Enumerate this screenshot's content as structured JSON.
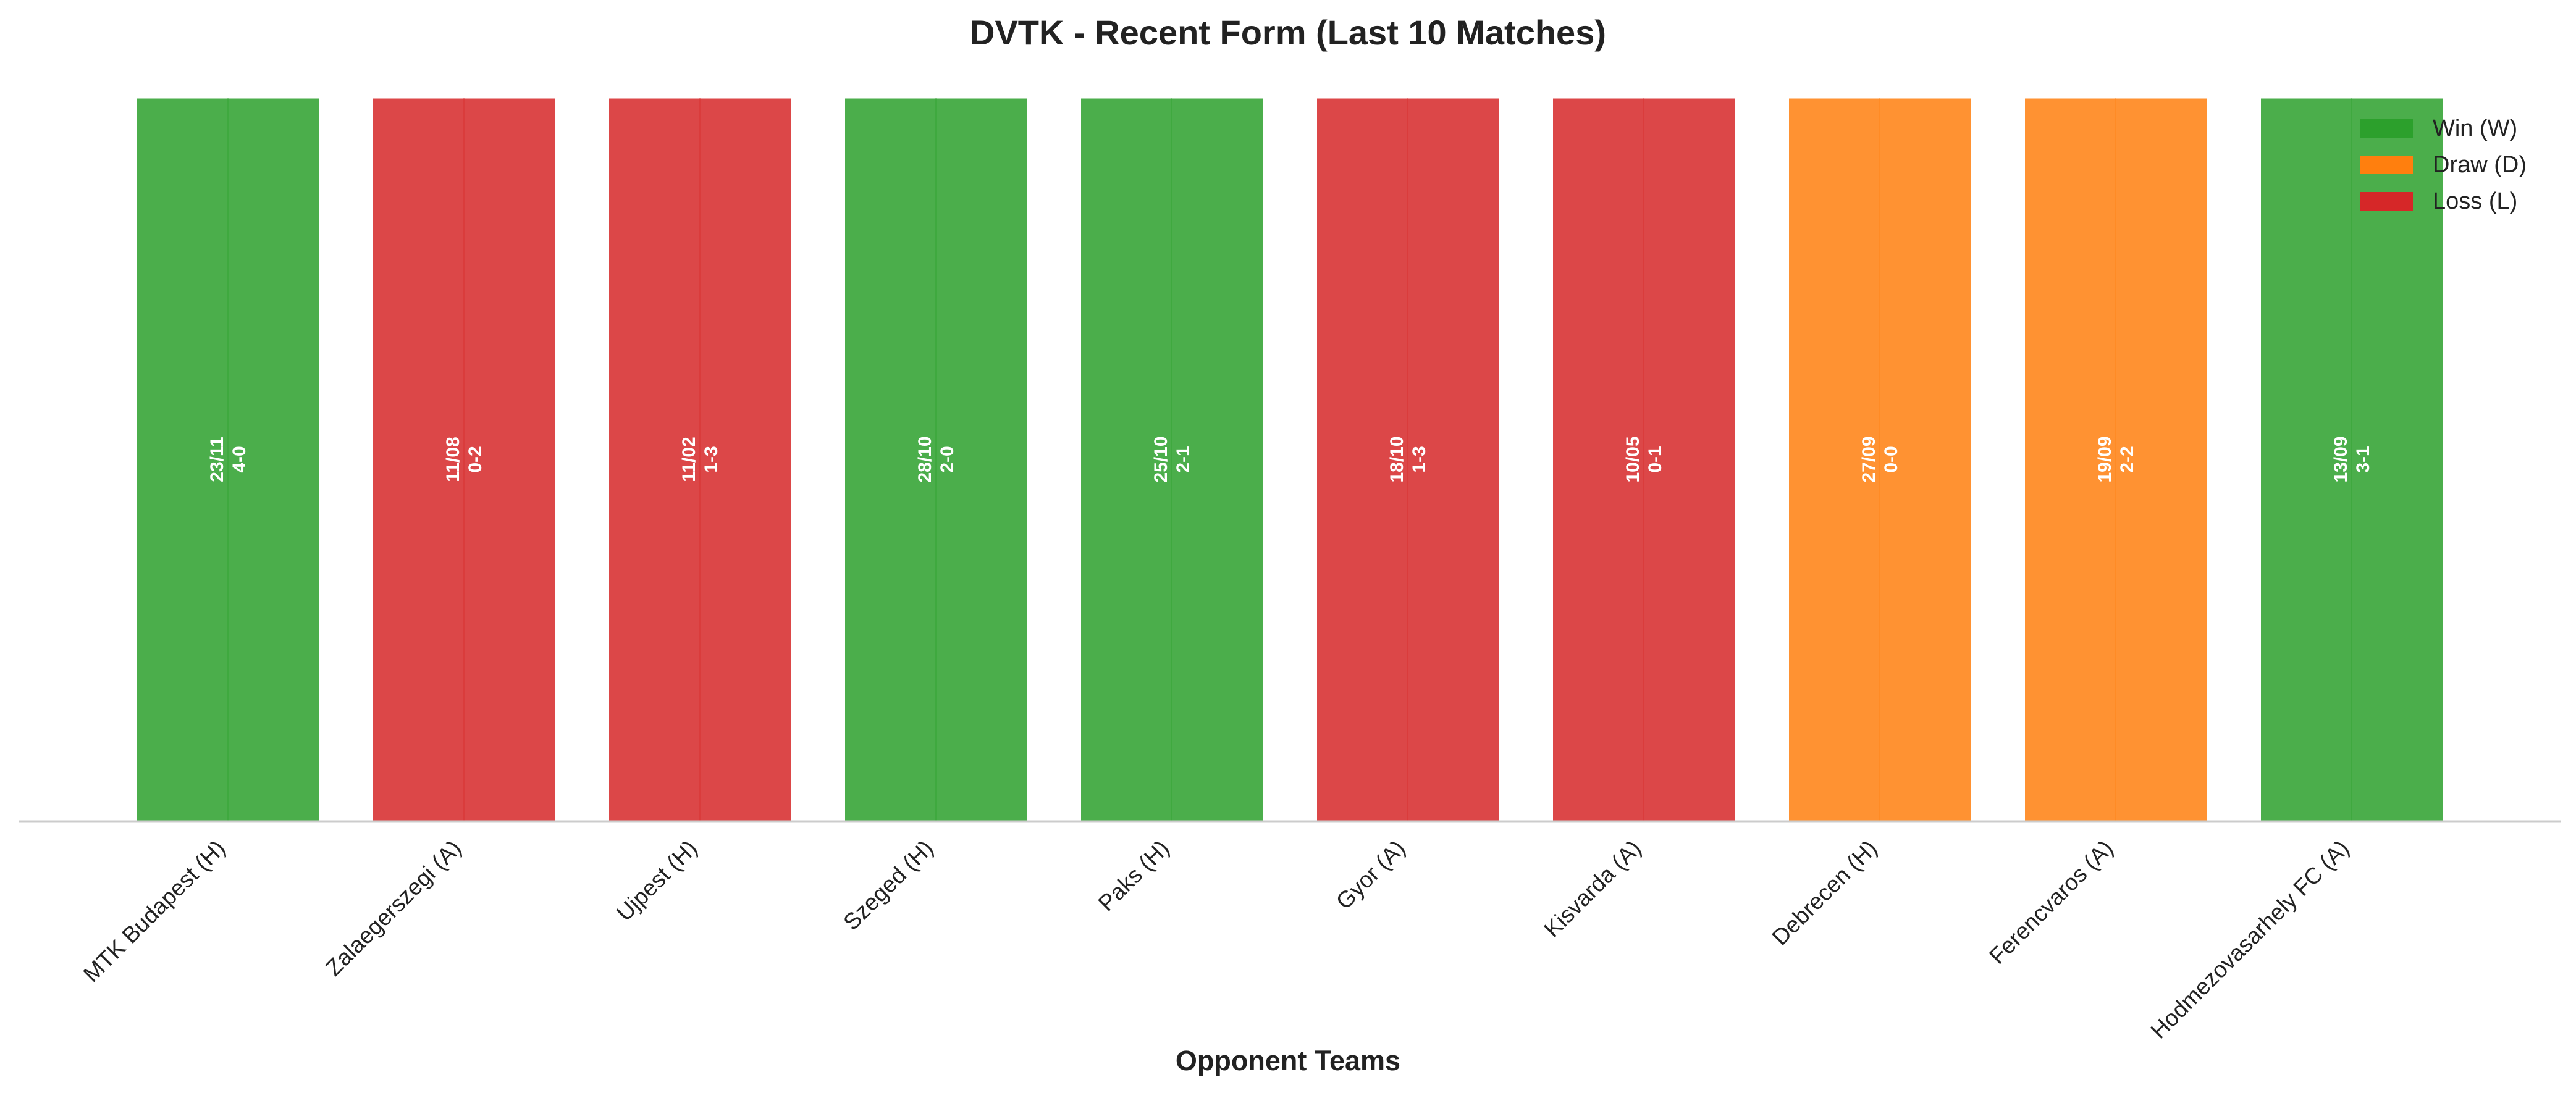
{
  "chart_data": {
    "type": "bar",
    "title": "DVTK - Recent Form (Last 10 Matches)",
    "xlabel": "Opponent Teams",
    "ylabel": "",
    "ylim": [
      0,
      1
    ],
    "grid": false,
    "legend_position": "top-right",
    "categories": [
      "MTK Budapest (H)",
      "Zalaegerszegi (A)",
      "Ujpest (H)",
      "Szeged (H)",
      "Paks (H)",
      "Gyor (A)",
      "Kisvarda (A)",
      "Debrecen (H)",
      "Ferencvaros (A)",
      "Hodmezovasarhely FC (A)"
    ],
    "values": [
      1,
      1,
      1,
      1,
      1,
      1,
      1,
      1,
      1,
      1
    ],
    "results": [
      "W",
      "L",
      "L",
      "W",
      "W",
      "L",
      "L",
      "D",
      "D",
      "W"
    ],
    "dates": [
      "23/11",
      "11/08",
      "11/02",
      "28/10",
      "25/10",
      "18/10",
      "10/05",
      "27/09",
      "19/09",
      "13/09"
    ],
    "scores": [
      "4-0",
      "0-2",
      "1-3",
      "2-0",
      "2-1",
      "1-3",
      "0-1",
      "0-0",
      "2-2",
      "3-1"
    ],
    "legend": [
      {
        "key": "W",
        "label": "Win (W)",
        "color": "#2ca02c"
      },
      {
        "key": "D",
        "label": "Draw (D)",
        "color": "#ff7f0e"
      },
      {
        "key": "L",
        "label": "Loss (L)",
        "color": "#d62728"
      }
    ],
    "colors": {
      "W": "#2ca02c",
      "D": "#ff7f0e",
      "L": "#d62728"
    }
  }
}
